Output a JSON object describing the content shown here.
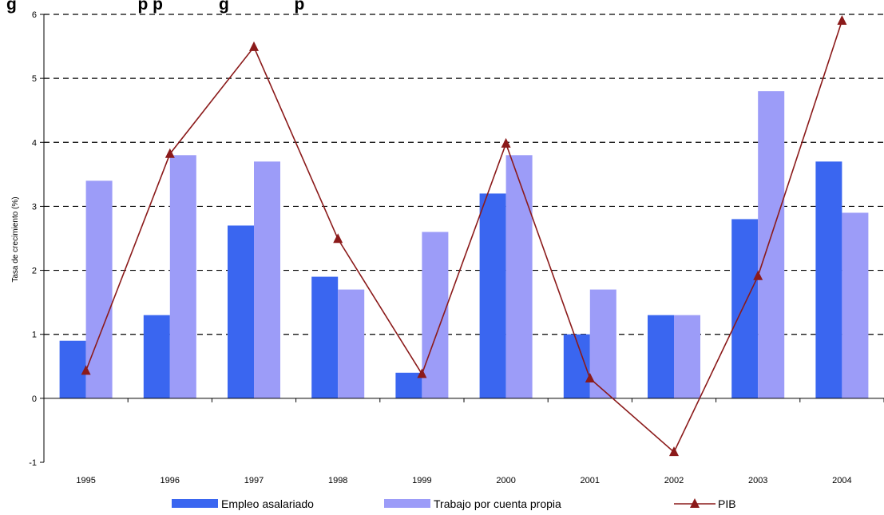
{
  "chart_data": {
    "type": "bar",
    "title": "",
    "title_fragment": "g                          p p            g              p",
    "ylabel": "Tasa de crecimiento (%)",
    "xlabel": "",
    "ylim": [
      -1,
      6
    ],
    "yticks": [
      "-1",
      "0",
      "1",
      "2",
      "3",
      "4",
      "5",
      "6"
    ],
    "categories": [
      "1995",
      "1996",
      "1997",
      "1998",
      "1999",
      "2000",
      "2001",
      "2002",
      "2003",
      "2004"
    ],
    "series": [
      {
        "name": "Empleo asalariado",
        "kind": "bar",
        "color": "#3a66f0",
        "values": [
          0.9,
          1.3,
          2.7,
          1.9,
          0.4,
          3.2,
          1.0,
          1.3,
          2.8,
          3.7
        ]
      },
      {
        "name": "Trabajo por cuenta propia",
        "kind": "bar",
        "color": "#9c9cf8",
        "values": [
          3.4,
          3.8,
          3.7,
          1.7,
          2.6,
          3.8,
          1.7,
          1.3,
          4.8,
          2.9
        ]
      },
      {
        "name": "PIB",
        "kind": "line",
        "color": "#8b1a1a",
        "values": [
          0.43,
          3.82,
          5.49,
          2.49,
          0.38,
          3.98,
          0.31,
          -0.84,
          1.91,
          5.9
        ]
      }
    ],
    "grid": "horizontal dashed",
    "legend_position": "bottom"
  }
}
